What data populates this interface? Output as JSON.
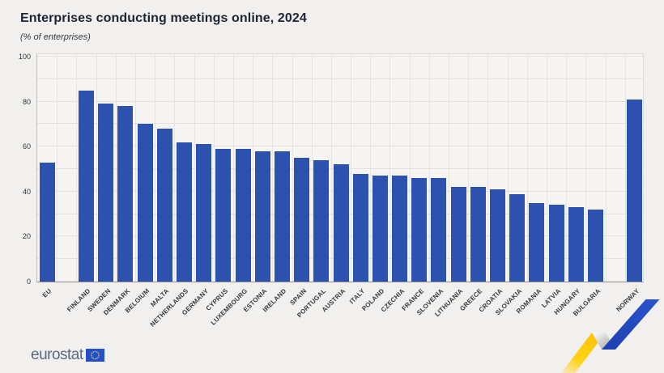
{
  "header": {
    "title": "Enterprises conducting meetings online, 2024",
    "subtitle": "(% of enterprises)"
  },
  "colors": {
    "bar_fill": "#2d51ae",
    "page_background": "#f1f0ee",
    "logo_flag_blue": "#2350c8",
    "logo_star_yellow": "#ffcc00",
    "ribbon_yellow": "#ffd314",
    "ribbon_blue": "#2446b4"
  },
  "footer": {
    "logo_text": "eurostat",
    "flag_icon": "eu-flag-icon",
    "decoration": "blue-yellow-ribbon"
  },
  "chart_data": {
    "type": "bar",
    "title": "Enterprises conducting meetings online, 2024",
    "subtitle": "(% of enterprises)",
    "unit": "% of enterprises",
    "xlabel": "",
    "ylabel": "",
    "ylim": [
      0,
      100
    ],
    "yticks": [
      0,
      20,
      40,
      60,
      80,
      100
    ],
    "grid": "horizontal-and-vertical",
    "legend": "none",
    "bar_order": "descending within EU members; EU aggregate first, Norway separated at right",
    "series": [
      {
        "group": "eu-aggregate",
        "items": [
          {
            "label": "EU",
            "value": 53
          }
        ]
      },
      {
        "group": "eu-members",
        "items": [
          {
            "label": "FINLAND",
            "value": 85
          },
          {
            "label": "SWEDEN",
            "value": 79
          },
          {
            "label": "DENMARK",
            "value": 78
          },
          {
            "label": "BELGIUM",
            "value": 70
          },
          {
            "label": "MALTA",
            "value": 68
          },
          {
            "label": "NETHERLANDS",
            "value": 62
          },
          {
            "label": "GERMANY",
            "value": 61
          },
          {
            "label": "CYPRUS",
            "value": 59
          },
          {
            "label": "LUXEMBOURG",
            "value": 59
          },
          {
            "label": "ESTONIA",
            "value": 58
          },
          {
            "label": "IRELAND",
            "value": 58
          },
          {
            "label": "SPAIN",
            "value": 55
          },
          {
            "label": "PORTUGAL",
            "value": 54
          },
          {
            "label": "AUSTRIA",
            "value": 52
          },
          {
            "label": "ITALY",
            "value": 48
          },
          {
            "label": "POLAND",
            "value": 47
          },
          {
            "label": "CZECHIA",
            "value": 47
          },
          {
            "label": "FRANCE",
            "value": 46
          },
          {
            "label": "SLOVENIA",
            "value": 46
          },
          {
            "label": "LITHUANIA",
            "value": 42
          },
          {
            "label": "GREECE",
            "value": 42
          },
          {
            "label": "CROATIA",
            "value": 41
          },
          {
            "label": "SLOVAKIA",
            "value": 39
          },
          {
            "label": "ROMANIA",
            "value": 35
          },
          {
            "label": "LATVIA",
            "value": 34
          },
          {
            "label": "HUNGARY",
            "value": 33
          },
          {
            "label": "BULGARIA",
            "value": 32
          }
        ]
      },
      {
        "group": "non-eu",
        "items": [
          {
            "label": "NORWAY",
            "value": 81
          }
        ]
      }
    ]
  }
}
